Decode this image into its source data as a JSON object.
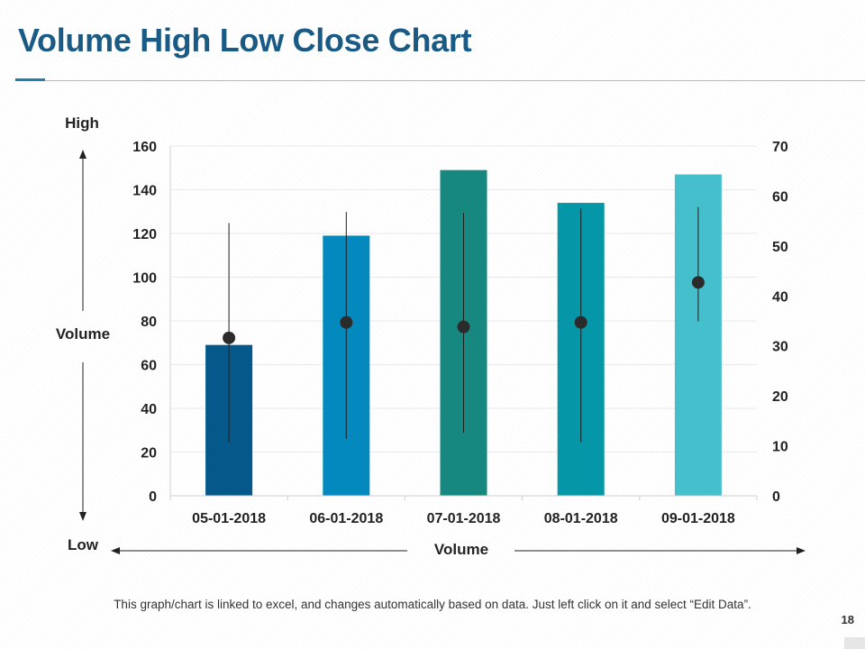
{
  "title": "Volume High Low Close Chart",
  "footer_note": "This graph/chart is linked to excel, and changes automatically based on data. Just left click on it and select “Edit Data”.",
  "page_number": "18",
  "annotations": {
    "high": "High",
    "volume_side": "Volume",
    "low": "Low",
    "volume_bottom": "Volume"
  },
  "colors": {
    "title": "#1a5b86",
    "accent": "#1b7fb6"
  },
  "chart_data": {
    "type": "bar",
    "categories": [
      "05-01-2018",
      "06-01-2018",
      "07-01-2018",
      "08-01-2018",
      "09-01-2018"
    ],
    "volume": [
      69,
      119,
      149,
      134,
      147
    ],
    "high": [
      54.6,
      56.8,
      56.6,
      57.5,
      57.8
    ],
    "low": [
      10.7,
      11.4,
      12.6,
      10.7,
      34.9
    ],
    "close": [
      31.6,
      34.7,
      33.8,
      34.7,
      42.7
    ],
    "bar_colors": [
      "#04588a",
      "#0389bd",
      "#178880",
      "#0597a7",
      "#46bfcc"
    ],
    "y_left": {
      "ticks": [
        "0",
        "20",
        "40",
        "60",
        "80",
        "100",
        "120",
        "140",
        "160"
      ],
      "lim": [
        0,
        160
      ]
    },
    "y_right": {
      "ticks": [
        "0",
        "10",
        "20",
        "30",
        "40",
        "50",
        "60",
        "70"
      ],
      "lim": [
        0,
        70
      ]
    },
    "grid": true
  }
}
